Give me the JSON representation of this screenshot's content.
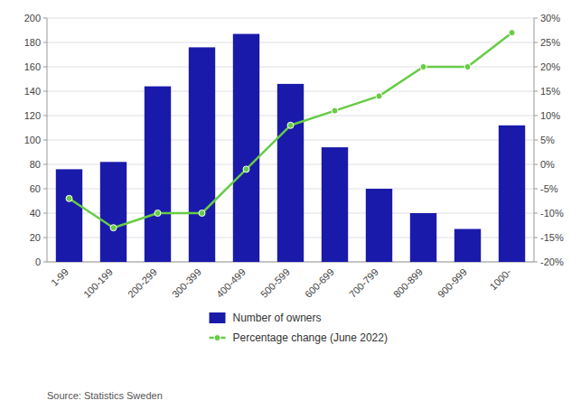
{
  "chart_data": {
    "type": "bar",
    "categories": [
      "1-99",
      "100-199",
      "200-299",
      "300-399",
      "400-499",
      "500-599",
      "600-699",
      "700-799",
      "800-899",
      "900-999",
      "1000-"
    ],
    "series": [
      {
        "name": "Number of owners",
        "type": "bar",
        "color": "#1a1aaa",
        "values": [
          76,
          82,
          144,
          176,
          187,
          146,
          94,
          60,
          40,
          27,
          112
        ]
      },
      {
        "name": "Percentage change (June 2022)",
        "type": "line",
        "axis": "y2",
        "color": "#66cc44",
        "marker": "circle",
        "values": [
          -7,
          -13,
          -10,
          -10,
          -1,
          8,
          11,
          14,
          20,
          20,
          27
        ]
      }
    ],
    "ylim": [
      0,
      200
    ],
    "yticks": [
      0,
      20,
      40,
      60,
      80,
      100,
      120,
      140,
      160,
      180,
      200
    ],
    "y2lim": [
      -20,
      30
    ],
    "y2ticks": [
      {
        "value": -20,
        "label": "-20%"
      },
      {
        "value": -15,
        "label": "-15%"
      },
      {
        "value": -10,
        "label": "-10%"
      },
      {
        "value": -5,
        "label": "-5%"
      },
      {
        "value": 0,
        "label": "0%"
      },
      {
        "value": 5,
        "label": "5%"
      },
      {
        "value": 10,
        "label": "10%"
      },
      {
        "value": 15,
        "label": "15%"
      },
      {
        "value": 20,
        "label": "20%"
      },
      {
        "value": 25,
        "label": "25%"
      },
      {
        "value": 30,
        "label": "30%"
      }
    ],
    "grid": true,
    "legend": "bottom",
    "annotations": [
      "Source: Statistics Sweden"
    ]
  }
}
